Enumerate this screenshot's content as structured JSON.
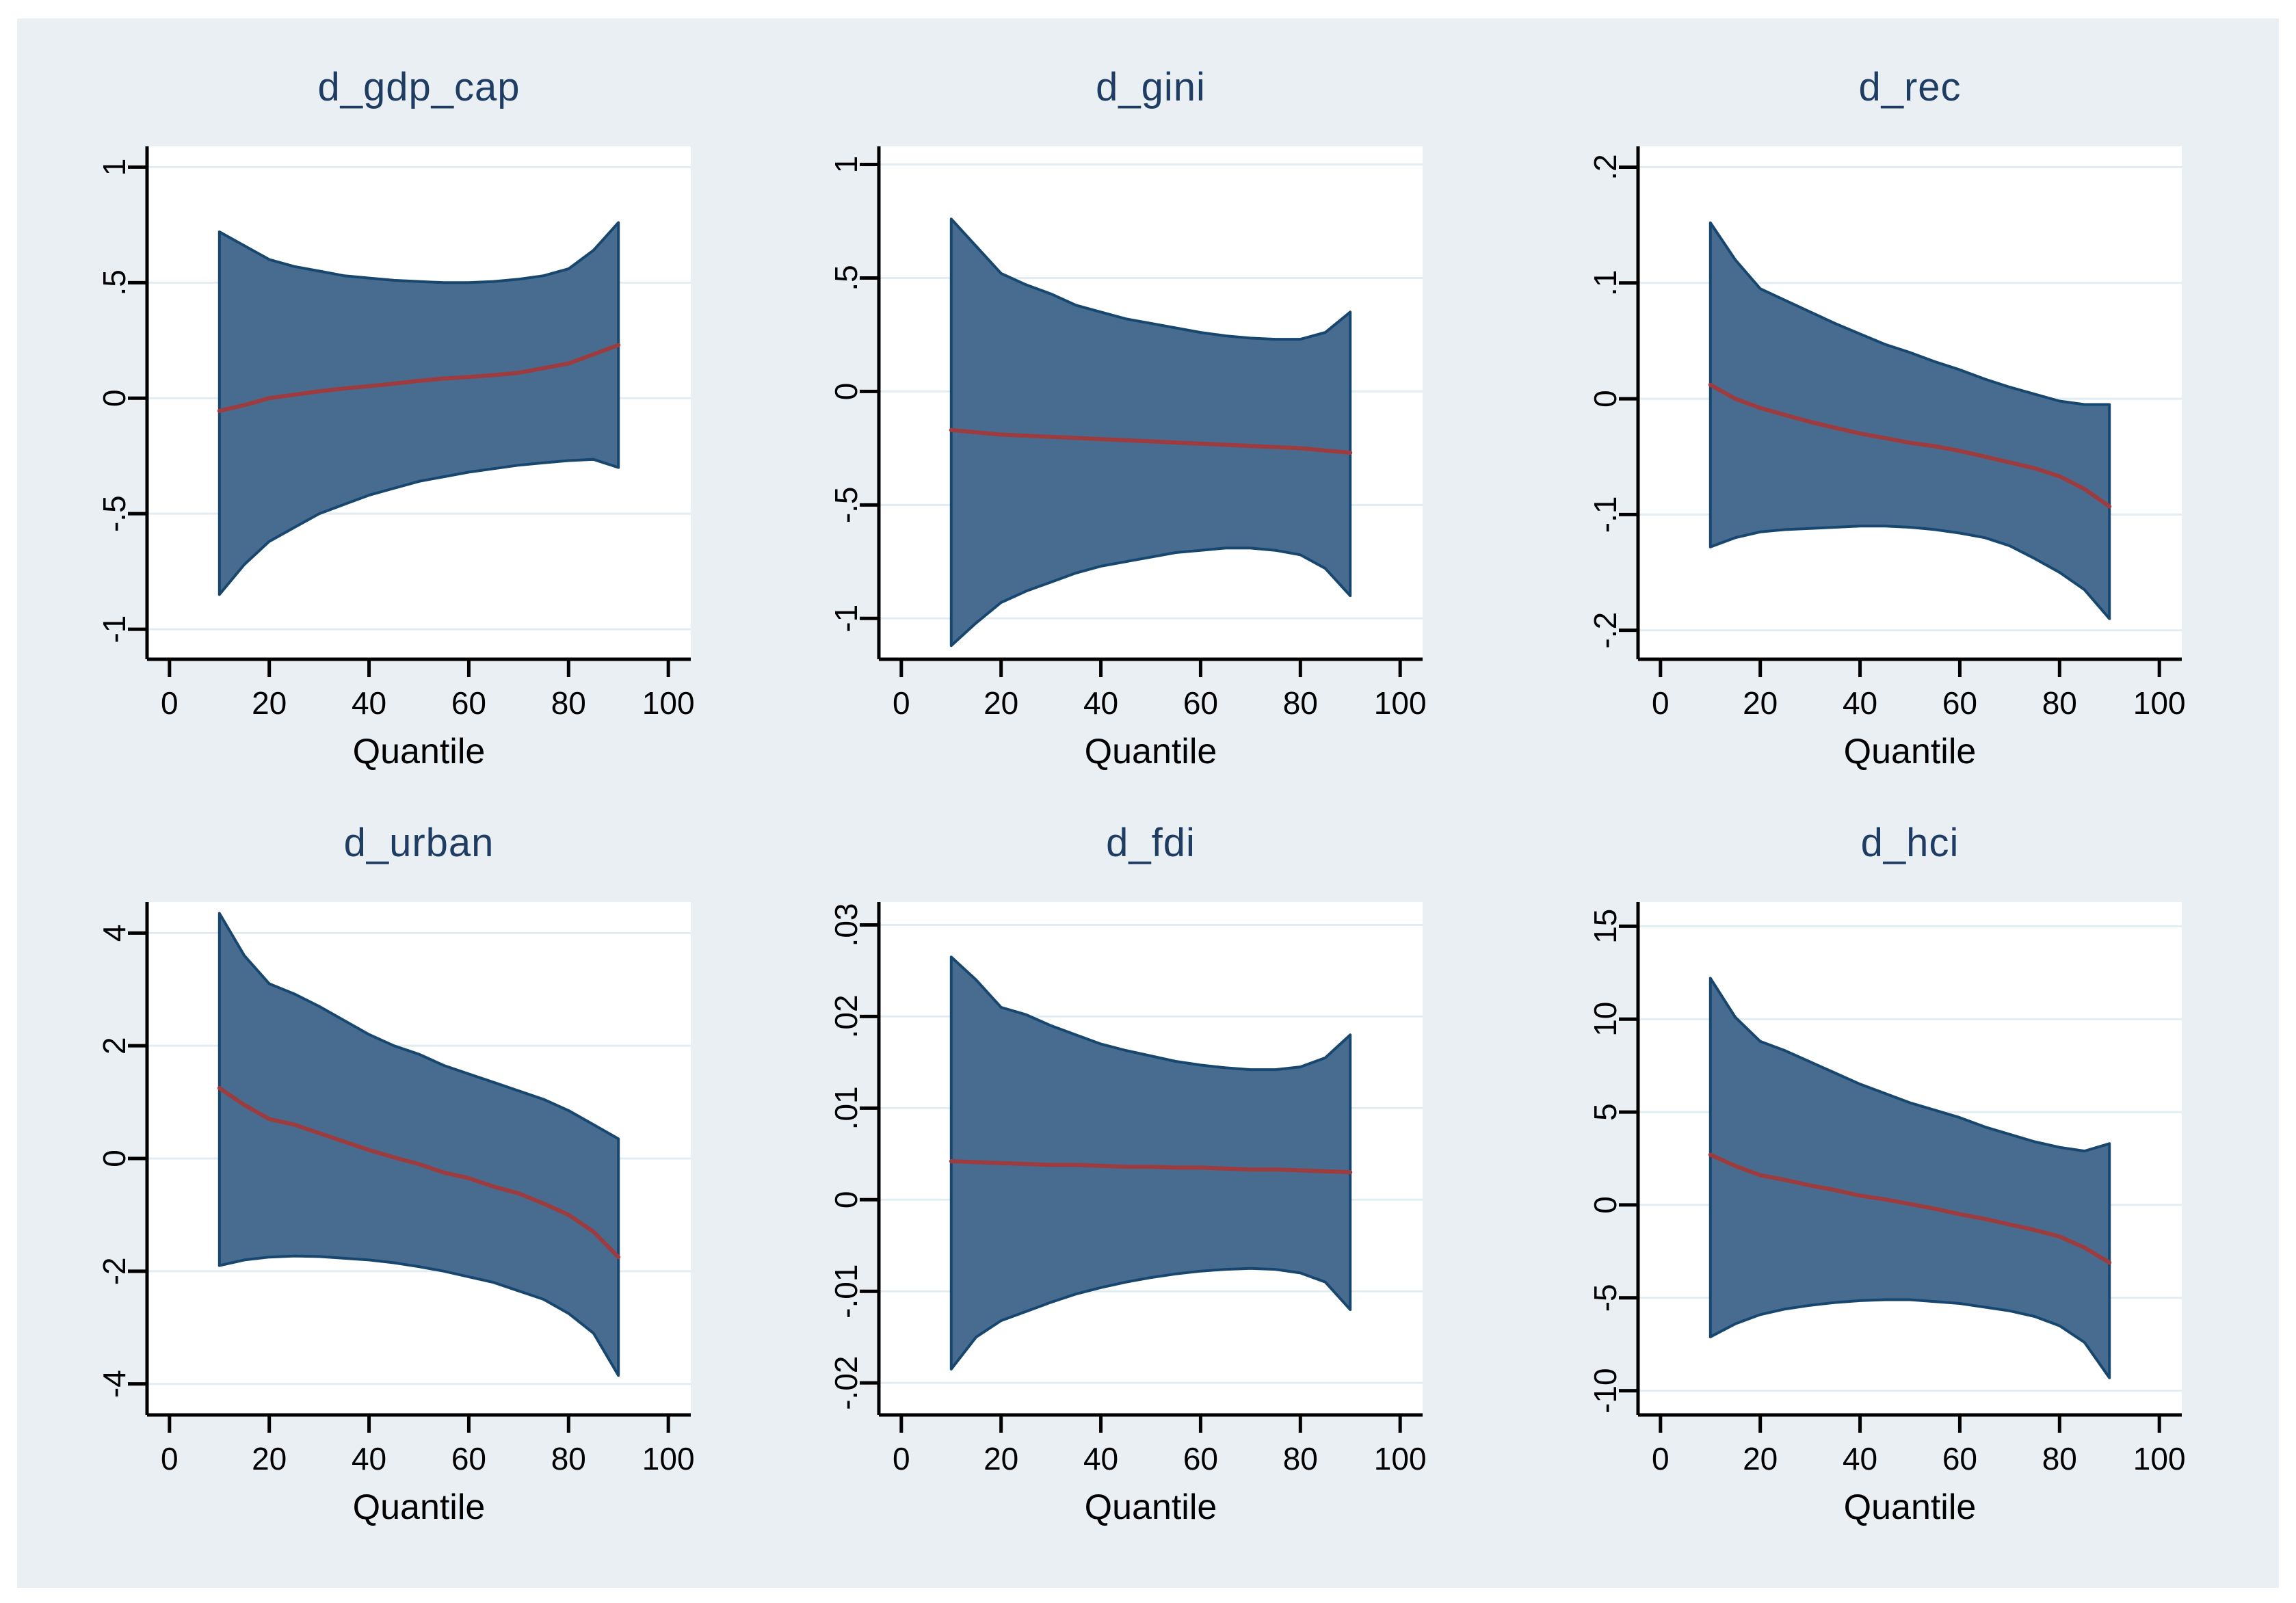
{
  "figure": {
    "page_background": "#ffffff",
    "background": "#e9eff3",
    "plot_background": "#ffffff",
    "grid_color": "#e2edf2",
    "axis_color": "#000000",
    "band_fill": "#486c90",
    "band_edge": "#17466e",
    "line_color": "#9d3c3f",
    "title_color": "#1f3c63"
  },
  "chart_data": [
    {
      "type": "area",
      "title": "d_gdp_cap",
      "xlabel": "Quantile",
      "x_ticks": [
        0,
        20,
        40,
        60,
        80,
        100
      ],
      "x_tick_labels": [
        "0",
        "20",
        "40",
        "60",
        "80",
        "100"
      ],
      "y_ticks": [
        1,
        0.5,
        0,
        -0.5,
        -1
      ],
      "y_tick_labels": [
        "1",
        ".5",
        "0",
        "-.5",
        "-1"
      ],
      "xlim": [
        -4.5,
        104.5
      ],
      "ylim": [
        -1.13,
        1.09
      ],
      "grid": true,
      "legend": "none",
      "x": [
        10,
        15,
        20,
        25,
        30,
        35,
        40,
        45,
        50,
        55,
        60,
        65,
        70,
        75,
        80,
        85,
        90
      ],
      "series": [
        {
          "name": "estimate",
          "values": [
            -0.055,
            -0.03,
            0.0,
            0.015,
            0.03,
            0.042,
            0.052,
            0.063,
            0.075,
            0.085,
            0.092,
            0.1,
            0.11,
            0.13,
            0.15,
            0.19,
            0.23
          ]
        },
        {
          "name": "ci_upper",
          "values": [
            0.72,
            0.66,
            0.6,
            0.57,
            0.55,
            0.53,
            0.52,
            0.51,
            0.505,
            0.5,
            0.5,
            0.505,
            0.515,
            0.53,
            0.56,
            0.64,
            0.76
          ]
        },
        {
          "name": "ci_lower",
          "values": [
            -0.85,
            -0.72,
            -0.62,
            -0.56,
            -0.5,
            -0.46,
            -0.42,
            -0.39,
            -0.36,
            -0.34,
            -0.32,
            -0.305,
            -0.29,
            -0.28,
            -0.27,
            -0.265,
            -0.3
          ]
        }
      ]
    },
    {
      "type": "area",
      "title": "d_gini",
      "xlabel": "Quantile",
      "x_ticks": [
        0,
        20,
        40,
        60,
        80,
        100
      ],
      "x_tick_labels": [
        "0",
        "20",
        "40",
        "60",
        "80",
        "100"
      ],
      "y_ticks": [
        1,
        0.5,
        0,
        -0.5,
        -1
      ],
      "y_tick_labels": [
        "1",
        ".5",
        "0",
        "-.5",
        "-1"
      ],
      "xlim": [
        -4.5,
        104.5
      ],
      "ylim": [
        -1.18,
        1.08
      ],
      "grid": true,
      "legend": "none",
      "x": [
        10,
        15,
        20,
        25,
        30,
        35,
        40,
        45,
        50,
        55,
        60,
        65,
        70,
        75,
        80,
        85,
        90
      ],
      "series": [
        {
          "name": "estimate",
          "values": [
            -0.17,
            -0.18,
            -0.19,
            -0.195,
            -0.2,
            -0.205,
            -0.21,
            -0.215,
            -0.22,
            -0.225,
            -0.23,
            -0.235,
            -0.24,
            -0.245,
            -0.25,
            -0.26,
            -0.27
          ]
        },
        {
          "name": "ci_upper",
          "values": [
            0.76,
            0.64,
            0.52,
            0.47,
            0.43,
            0.38,
            0.35,
            0.32,
            0.3,
            0.28,
            0.26,
            0.245,
            0.235,
            0.23,
            0.23,
            0.26,
            0.35
          ]
        },
        {
          "name": "ci_lower",
          "values": [
            -1.12,
            -1.02,
            -0.93,
            -0.88,
            -0.84,
            -0.8,
            -0.77,
            -0.75,
            -0.73,
            -0.71,
            -0.7,
            -0.69,
            -0.69,
            -0.7,
            -0.72,
            -0.78,
            -0.9
          ]
        }
      ]
    },
    {
      "type": "area",
      "title": "d_rec",
      "xlabel": "Quantile",
      "x_ticks": [
        0,
        20,
        40,
        60,
        80,
        100
      ],
      "x_tick_labels": [
        "0",
        "20",
        "40",
        "60",
        "80",
        "100"
      ],
      "y_ticks": [
        0.2,
        0.1,
        0,
        -0.1,
        -0.2
      ],
      "y_tick_labels": [
        ".2",
        ".1",
        "0",
        "-.1",
        "-.2"
      ],
      "xlim": [
        -4.5,
        104.5
      ],
      "ylim": [
        -0.225,
        0.218
      ],
      "grid": true,
      "legend": "none",
      "x": [
        10,
        15,
        20,
        25,
        30,
        35,
        40,
        45,
        50,
        55,
        60,
        65,
        70,
        75,
        80,
        85,
        90
      ],
      "series": [
        {
          "name": "estimate",
          "values": [
            0.012,
            0.0,
            -0.008,
            -0.014,
            -0.02,
            -0.025,
            -0.03,
            -0.034,
            -0.038,
            -0.041,
            -0.045,
            -0.05,
            -0.055,
            -0.06,
            -0.067,
            -0.078,
            -0.093
          ]
        },
        {
          "name": "ci_upper",
          "values": [
            0.152,
            0.12,
            0.095,
            0.085,
            0.075,
            0.065,
            0.056,
            0.047,
            0.04,
            0.032,
            0.025,
            0.017,
            0.01,
            0.004,
            -0.002,
            -0.005,
            -0.005
          ]
        },
        {
          "name": "ci_lower",
          "values": [
            -0.128,
            -0.12,
            -0.115,
            -0.113,
            -0.112,
            -0.111,
            -0.11,
            -0.11,
            -0.111,
            -0.113,
            -0.116,
            -0.12,
            -0.127,
            -0.138,
            -0.15,
            -0.165,
            -0.19
          ]
        }
      ]
    },
    {
      "type": "area",
      "title": "d_urban",
      "xlabel": "Quantile",
      "x_ticks": [
        0,
        20,
        40,
        60,
        80,
        100
      ],
      "x_tick_labels": [
        "0",
        "20",
        "40",
        "60",
        "80",
        "100"
      ],
      "y_ticks": [
        4,
        2,
        0,
        -2,
        -4
      ],
      "y_tick_labels": [
        "4",
        "2",
        "0",
        "-2",
        "-4"
      ],
      "xlim": [
        -4.5,
        104.5
      ],
      "ylim": [
        -4.55,
        4.55
      ],
      "grid": true,
      "legend": "none",
      "x": [
        10,
        15,
        20,
        25,
        30,
        35,
        40,
        45,
        50,
        55,
        60,
        65,
        70,
        75,
        80,
        85,
        90
      ],
      "series": [
        {
          "name": "estimate",
          "values": [
            1.25,
            0.95,
            0.7,
            0.6,
            0.45,
            0.3,
            0.15,
            0.02,
            -0.1,
            -0.25,
            -0.35,
            -0.5,
            -0.62,
            -0.8,
            -1.0,
            -1.3,
            -1.75
          ]
        },
        {
          "name": "ci_upper",
          "values": [
            4.35,
            3.6,
            3.1,
            2.92,
            2.7,
            2.45,
            2.2,
            2.0,
            1.85,
            1.65,
            1.5,
            1.35,
            1.2,
            1.05,
            0.85,
            0.6,
            0.35
          ]
        },
        {
          "name": "ci_lower",
          "values": [
            -1.9,
            -1.8,
            -1.75,
            -1.73,
            -1.74,
            -1.77,
            -1.8,
            -1.85,
            -1.92,
            -2.0,
            -2.1,
            -2.2,
            -2.35,
            -2.5,
            -2.75,
            -3.1,
            -3.85
          ]
        }
      ]
    },
    {
      "type": "area",
      "title": "d_fdi",
      "xlabel": "Quantile",
      "x_ticks": [
        0,
        20,
        40,
        60,
        80,
        100
      ],
      "x_tick_labels": [
        "0",
        "20",
        "40",
        "60",
        "80",
        "100"
      ],
      "y_ticks": [
        0.03,
        0.02,
        0.01,
        0,
        -0.01,
        -0.02
      ],
      "y_tick_labels": [
        ".03",
        ".02",
        ".01",
        "0",
        "-.01",
        "-.02"
      ],
      "xlim": [
        -4.5,
        104.5
      ],
      "ylim": [
        -0.0235,
        0.0325
      ],
      "grid": true,
      "legend": "none",
      "x": [
        10,
        15,
        20,
        25,
        30,
        35,
        40,
        45,
        50,
        55,
        60,
        65,
        70,
        75,
        80,
        85,
        90
      ],
      "series": [
        {
          "name": "estimate",
          "values": [
            0.0042,
            0.0041,
            0.004,
            0.0039,
            0.0038,
            0.0038,
            0.0037,
            0.0036,
            0.0036,
            0.0035,
            0.0035,
            0.0034,
            0.0033,
            0.0033,
            0.0032,
            0.0031,
            0.003
          ]
        },
        {
          "name": "ci_upper",
          "values": [
            0.0265,
            0.024,
            0.021,
            0.0202,
            0.019,
            0.018,
            0.017,
            0.0163,
            0.0157,
            0.0151,
            0.0147,
            0.0144,
            0.0142,
            0.0142,
            0.0145,
            0.0155,
            0.018
          ]
        },
        {
          "name": "ci_lower",
          "values": [
            -0.0185,
            -0.015,
            -0.0132,
            -0.0122,
            -0.0112,
            -0.0103,
            -0.0096,
            -0.009,
            -0.0085,
            -0.0081,
            -0.0078,
            -0.0076,
            -0.0075,
            -0.0076,
            -0.008,
            -0.009,
            -0.012
          ]
        }
      ]
    },
    {
      "type": "area",
      "title": "d_hci",
      "xlabel": "Quantile",
      "x_ticks": [
        0,
        20,
        40,
        60,
        80,
        100
      ],
      "x_tick_labels": [
        "0",
        "20",
        "40",
        "60",
        "80",
        "100"
      ],
      "y_ticks": [
        15,
        10,
        5,
        0,
        -5,
        -10
      ],
      "y_tick_labels": [
        "15",
        "10",
        "5",
        "0",
        "-5",
        "-10"
      ],
      "xlim": [
        -4.5,
        104.5
      ],
      "ylim": [
        -11.3,
        16.3
      ],
      "grid": true,
      "legend": "none",
      "x": [
        10,
        15,
        20,
        25,
        30,
        35,
        40,
        45,
        50,
        55,
        60,
        65,
        70,
        75,
        80,
        85,
        90
      ],
      "series": [
        {
          "name": "estimate",
          "values": [
            2.7,
            2.1,
            1.6,
            1.35,
            1.05,
            0.8,
            0.5,
            0.3,
            0.05,
            -0.2,
            -0.5,
            -0.75,
            -1.05,
            -1.35,
            -1.7,
            -2.3,
            -3.1
          ]
        },
        {
          "name": "ci_upper",
          "values": [
            12.2,
            10.1,
            8.8,
            8.3,
            7.7,
            7.1,
            6.5,
            6.0,
            5.5,
            5.1,
            4.7,
            4.2,
            3.8,
            3.4,
            3.1,
            2.9,
            3.3
          ]
        },
        {
          "name": "ci_lower",
          "values": [
            -7.1,
            -6.4,
            -5.9,
            -5.6,
            -5.4,
            -5.25,
            -5.15,
            -5.1,
            -5.1,
            -5.2,
            -5.3,
            -5.5,
            -5.7,
            -6.0,
            -6.5,
            -7.4,
            -9.3
          ]
        }
      ]
    }
  ]
}
